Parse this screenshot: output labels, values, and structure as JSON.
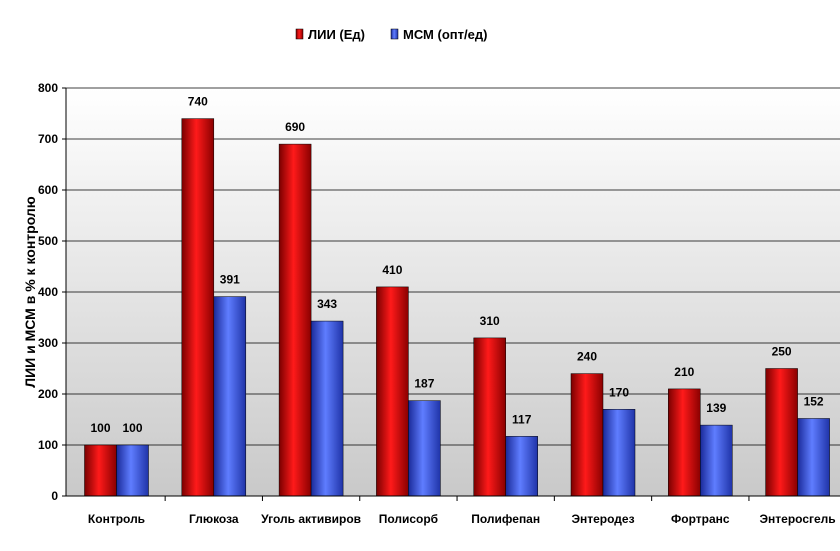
{
  "chart_data": {
    "type": "bar",
    "categories": [
      "Контроль",
      "Глюкоза",
      "Уголь активиров",
      "Полисорб",
      "Полифепан",
      "Энтеродез",
      "Фортранс",
      "Энтеросгель"
    ],
    "series": [
      {
        "name": "ЛИИ (Ед)",
        "values": [
          100,
          740,
          690,
          410,
          310,
          240,
          210,
          250
        ],
        "color": "#e00000"
      },
      {
        "name": "МСМ (опт/ед)",
        "values": [
          100,
          391,
          343,
          187,
          117,
          170,
          139,
          152
        ],
        "color": "#3355ee"
      }
    ],
    "value_labels": [
      [
        "100",
        "740",
        "690",
        "410",
        "310",
        "240",
        "210",
        "250"
      ],
      [
        "100",
        "391",
        "343",
        "187",
        "117",
        "170",
        "139",
        "152"
      ]
    ],
    "yticks": [
      "0",
      "100",
      "200",
      "300",
      "400",
      "500",
      "600",
      "700",
      "800"
    ],
    "ylabel": "ЛИИ и МСМ в % к контролю",
    "xlabel": "",
    "title": "",
    "ylim": [
      0,
      800
    ],
    "grid": true,
    "legend_position": "top-center"
  }
}
